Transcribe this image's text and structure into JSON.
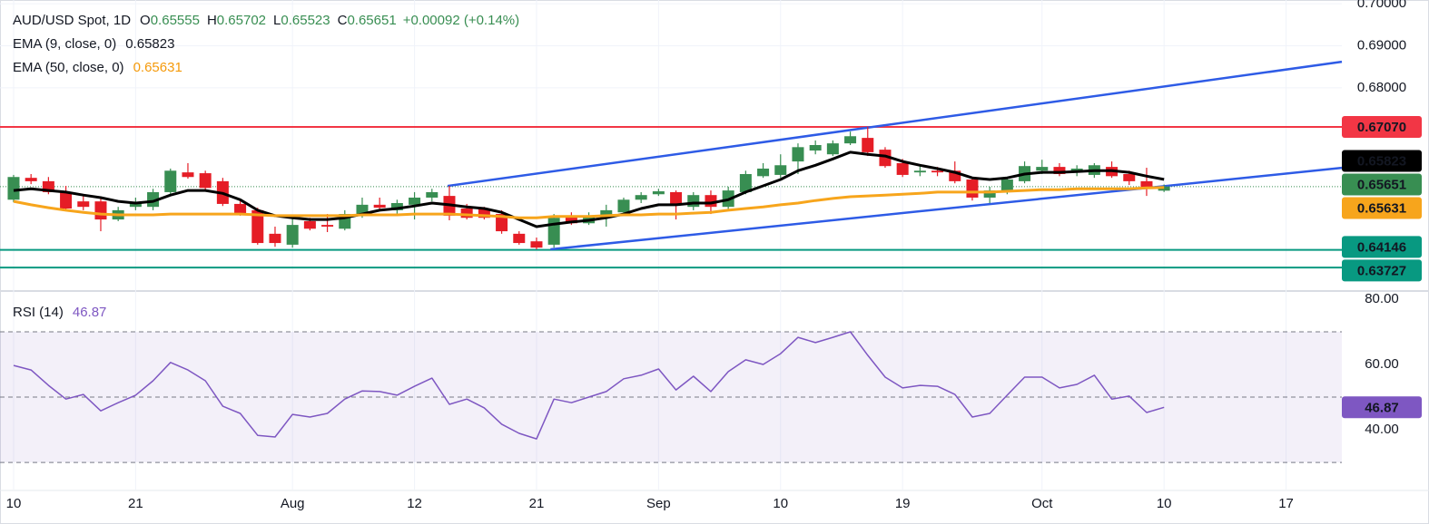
{
  "chart_data": [
    {
      "type": "candlestick",
      "title": "AUD/USD Spot, 1D",
      "ohlc_labels": [
        "O",
        "H",
        "L",
        "C"
      ],
      "change": "+0.00092 (+0.14%)",
      "xlim": [
        -0.78,
        76.2
      ],
      "xticks": [
        {
          "value": 0,
          "label": "10"
        },
        {
          "value": 7,
          "label": "21"
        },
        {
          "value": 16,
          "label": "Aug"
        },
        {
          "value": 23,
          "label": "12"
        },
        {
          "value": 30,
          "label": "21"
        },
        {
          "value": 37,
          "label": "Sep"
        },
        {
          "value": 44,
          "label": "10"
        },
        {
          "value": 51,
          "label": "19"
        },
        {
          "value": 59,
          "label": "Oct"
        },
        {
          "value": 66,
          "label": "10"
        },
        {
          "value": 73,
          "label": "17"
        }
      ],
      "ylim": [
        0.6319,
        0.7009
      ],
      "yticks": [
        {
          "value": 0.7,
          "label": "0.70000"
        },
        {
          "value": 0.69,
          "label": "0.69000"
        },
        {
          "value": 0.68,
          "label": "0.68000"
        }
      ],
      "grid": true,
      "up_color": "#388e52",
      "down_color": "#e51d26",
      "open": [
        0.6534,
        0.6586,
        0.6578,
        0.6552,
        0.653,
        0.653,
        0.6487,
        0.6517,
        0.6517,
        0.6552,
        0.6599,
        0.6597,
        0.6578,
        0.6524,
        0.6509,
        0.6453,
        0.6427,
        0.6483,
        0.6474,
        0.6465,
        0.6496,
        0.6522,
        0.6509,
        0.6522,
        0.6539,
        0.6543,
        0.6513,
        0.6513,
        0.65,
        0.6453,
        0.6435,
        0.6427,
        0.6496,
        0.6478,
        0.6491,
        0.6504,
        0.6534,
        0.6547,
        0.6552,
        0.6517,
        0.6545,
        0.6517,
        0.6552,
        0.659,
        0.6593,
        0.6625,
        0.6651,
        0.6642,
        0.6668,
        0.6681,
        0.6653,
        0.6621,
        0.6599,
        0.6603,
        0.6603,
        0.6582,
        0.6539,
        0.6552,
        0.6578,
        0.6603,
        0.6612,
        0.6599,
        0.6593,
        0.6612,
        0.6595,
        0.6578,
        0.65555
      ],
      "high": [
        0.6593,
        0.6595,
        0.6588,
        0.6567,
        0.6545,
        0.6539,
        0.6517,
        0.6539,
        0.656,
        0.6608,
        0.6621,
        0.6603,
        0.6586,
        0.653,
        0.6515,
        0.647,
        0.6491,
        0.6491,
        0.65,
        0.6509,
        0.6539,
        0.6539,
        0.6534,
        0.6552,
        0.656,
        0.6567,
        0.6524,
        0.6517,
        0.6509,
        0.6459,
        0.6444,
        0.65,
        0.6504,
        0.6504,
        0.6522,
        0.6539,
        0.6552,
        0.656,
        0.6556,
        0.6552,
        0.6556,
        0.6565,
        0.6603,
        0.6621,
        0.6642,
        0.6668,
        0.6675,
        0.6675,
        0.6696,
        0.6707,
        0.6659,
        0.6631,
        0.6616,
        0.6612,
        0.6625,
        0.6586,
        0.6565,
        0.6586,
        0.6625,
        0.6629,
        0.6621,
        0.6616,
        0.6621,
        0.6625,
        0.6603,
        0.661,
        0.65702
      ],
      "low": [
        0.6528,
        0.6571,
        0.6547,
        0.6509,
        0.6509,
        0.6459,
        0.6483,
        0.6509,
        0.6509,
        0.6547,
        0.6584,
        0.6556,
        0.6519,
        0.6496,
        0.6427,
        0.6422,
        0.642,
        0.6461,
        0.6457,
        0.6461,
        0.6491,
        0.6509,
        0.65,
        0.6487,
        0.653,
        0.6485,
        0.6487,
        0.6487,
        0.6453,
        0.6427,
        0.6416,
        0.642,
        0.6474,
        0.6474,
        0.647,
        0.65,
        0.6526,
        0.6543,
        0.6487,
        0.6509,
        0.65,
        0.6509,
        0.6547,
        0.6586,
        0.6586,
        0.6595,
        0.6642,
        0.6638,
        0.6664,
        0.6638,
        0.661,
        0.6588,
        0.659,
        0.659,
        0.6573,
        0.6532,
        0.6526,
        0.6547,
        0.6573,
        0.6595,
        0.659,
        0.659,
        0.6586,
        0.6586,
        0.6569,
        0.6543,
        0.65523
      ],
      "close": [
        0.6588,
        0.6578,
        0.6552,
        0.6513,
        0.6517,
        0.6487,
        0.6509,
        0.6526,
        0.6552,
        0.6603,
        0.6588,
        0.6562,
        0.6524,
        0.6502,
        0.6431,
        0.6431,
        0.6474,
        0.6465,
        0.647,
        0.65,
        0.6522,
        0.6515,
        0.6526,
        0.6539,
        0.6552,
        0.6496,
        0.6491,
        0.6491,
        0.6459,
        0.6431,
        0.642,
        0.6491,
        0.6478,
        0.6496,
        0.6509,
        0.6534,
        0.6545,
        0.6554,
        0.6522,
        0.6545,
        0.6517,
        0.6556,
        0.6595,
        0.6608,
        0.6616,
        0.6659,
        0.6664,
        0.6668,
        0.6685,
        0.6647,
        0.6614,
        0.6593,
        0.6603,
        0.6599,
        0.6578,
        0.6539,
        0.6556,
        0.6582,
        0.6614,
        0.6612,
        0.6595,
        0.6608,
        0.6616,
        0.659,
        0.6578,
        0.656,
        0.65651
      ],
      "series": [
        {
          "name": "EMA (9, close, 0)",
          "color": "#000000",
          "label_color": "#131722",
          "values": [
            0.6556,
            0.656,
            0.6556,
            0.6552,
            0.6545,
            0.6539,
            0.653,
            0.6526,
            0.653,
            0.6545,
            0.6556,
            0.6556,
            0.6549,
            0.6534,
            0.6509,
            0.6496,
            0.6491,
            0.6487,
            0.6487,
            0.6491,
            0.65,
            0.6509,
            0.6513,
            0.6519,
            0.6526,
            0.6522,
            0.6517,
            0.6513,
            0.6504,
            0.6487,
            0.647,
            0.6476,
            0.6481,
            0.6485,
            0.6491,
            0.65,
            0.6513,
            0.6522,
            0.6522,
            0.6526,
            0.6526,
            0.6534,
            0.6552,
            0.6567,
            0.6582,
            0.6603,
            0.6616,
            0.6631,
            0.6647,
            0.6642,
            0.6638,
            0.6625,
            0.6616,
            0.6608,
            0.6599,
            0.6586,
            0.6582,
            0.6586,
            0.6595,
            0.6599,
            0.6599,
            0.6601,
            0.6603,
            0.6603,
            0.6599,
            0.659,
            0.65823
          ]
        },
        {
          "name": "EMA (50, close, 0)",
          "color": "#f7a51c",
          "label_color": "#f59a0b",
          "values": [
            0.653,
            0.6522,
            0.6515,
            0.6509,
            0.6504,
            0.65,
            0.6498,
            0.6498,
            0.6498,
            0.65,
            0.65,
            0.65,
            0.65,
            0.65,
            0.6498,
            0.6496,
            0.6496,
            0.6496,
            0.6496,
            0.6496,
            0.6498,
            0.6498,
            0.6498,
            0.65,
            0.65,
            0.65,
            0.6498,
            0.6496,
            0.6494,
            0.6491,
            0.6491,
            0.6494,
            0.6494,
            0.6494,
            0.6496,
            0.6498,
            0.6498,
            0.65,
            0.65,
            0.6502,
            0.6504,
            0.6509,
            0.6513,
            0.6517,
            0.6522,
            0.6526,
            0.6532,
            0.6537,
            0.6541,
            0.6543,
            0.6545,
            0.6547,
            0.6549,
            0.6552,
            0.6552,
            0.6552,
            0.6552,
            0.6554,
            0.6556,
            0.6558,
            0.6558,
            0.656,
            0.656,
            0.656,
            0.656,
            0.6562,
            0.65631
          ]
        }
      ],
      "levels": [
        {
          "value": 0.6707,
          "label": "0.67070",
          "color": "#f23645"
        },
        {
          "value": 0.64146,
          "color": "#089981"
        },
        {
          "value": 0.63727,
          "color": "#089981"
        }
      ],
      "trendlines": [
        {
          "x": [
            24.9,
            76.2
          ],
          "y": [
            0.65667,
            0.6862
          ],
          "color": "#2e5be6"
        },
        {
          "x": [
            30.8,
            76.2
          ],
          "y": [
            0.6416,
            0.66098
          ],
          "color": "#2e5be6"
        }
      ]
    },
    {
      "type": "line",
      "title": "RSI (14)",
      "ylim": [
        21.7,
        82.2
      ],
      "yticks": [
        {
          "value": 80,
          "label": "80.00"
        },
        {
          "value": 60,
          "label": "60.00"
        },
        {
          "value": 40,
          "label": "40.00"
        }
      ],
      "levels": [
        70,
        50,
        30
      ],
      "band_color": "#7e57c2",
      "series": [
        {
          "name": "RSI (14)",
          "color": "#7e57c2",
          "values": [
            59.7,
            58.3,
            53.6,
            49.4,
            50.8,
            45.8,
            48.3,
            50.6,
            55,
            60.6,
            58.3,
            55,
            47.2,
            45,
            38.3,
            37.8,
            44.7,
            43.9,
            45,
            49.4,
            51.9,
            51.7,
            50.6,
            53.3,
            55.8,
            47.8,
            49.4,
            46.7,
            41.7,
            38.9,
            37.2,
            49.4,
            48.3,
            50,
            51.7,
            55.6,
            56.7,
            58.6,
            52.2,
            56.4,
            51.7,
            57.8,
            61.4,
            60,
            63.3,
            68.3,
            66.7,
            68.3,
            70,
            62.8,
            56.1,
            52.8,
            53.6,
            53.3,
            50.8,
            43.9,
            45,
            50.6,
            56.1,
            56.1,
            52.8,
            53.9,
            56.7,
            49.4,
            50.3,
            45.3,
            46.87
          ]
        }
      ]
    }
  ]
}
